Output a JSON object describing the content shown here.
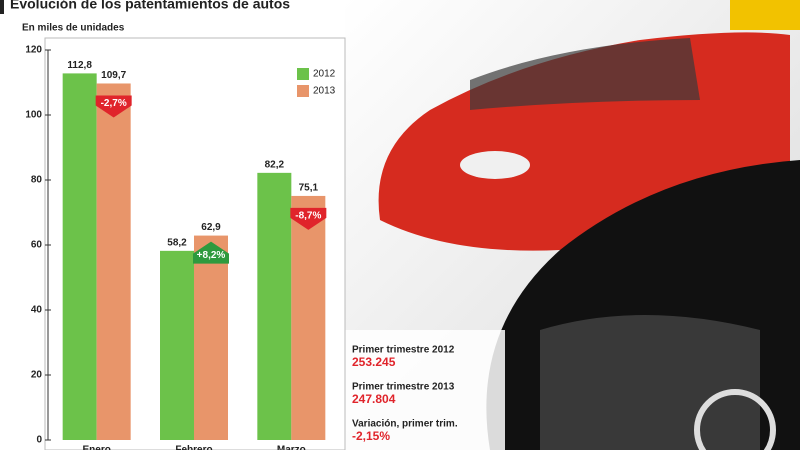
{
  "chart_data": {
    "type": "bar",
    "title": "Evolución de los patentamientos de autos",
    "subtitle": "En miles de unidades",
    "categories": [
      "Enero",
      "Febrero",
      "Marzo"
    ],
    "series": [
      {
        "name": "2012",
        "color": "#6cc24a",
        "values": [
          112.8,
          58.2,
          82.2
        ],
        "value_labels": [
          "112,8",
          "58,2",
          "82,2"
        ]
      },
      {
        "name": "2013",
        "color": "#e8956a",
        "values": [
          109.7,
          62.9,
          75.1
        ],
        "value_labels": [
          "109,7",
          "62,9",
          "75,1"
        ]
      }
    ],
    "changes": [
      -2.7,
      8.2,
      -8.7
    ],
    "change_labels": [
      "-2,7%",
      "+8,2%",
      "-8,7%"
    ],
    "ylim": [
      0,
      120
    ],
    "yticks": [
      0,
      20,
      40,
      60,
      80,
      100,
      120
    ],
    "grid": false,
    "legend": "top-right",
    "summary": [
      {
        "label": "Primer trimestre 2012",
        "value": "253.245"
      },
      {
        "label": "Primer trimestre 2013",
        "value": "247.804"
      },
      {
        "label": "Variación, primer trim.",
        "value": "-2,15%"
      }
    ]
  }
}
